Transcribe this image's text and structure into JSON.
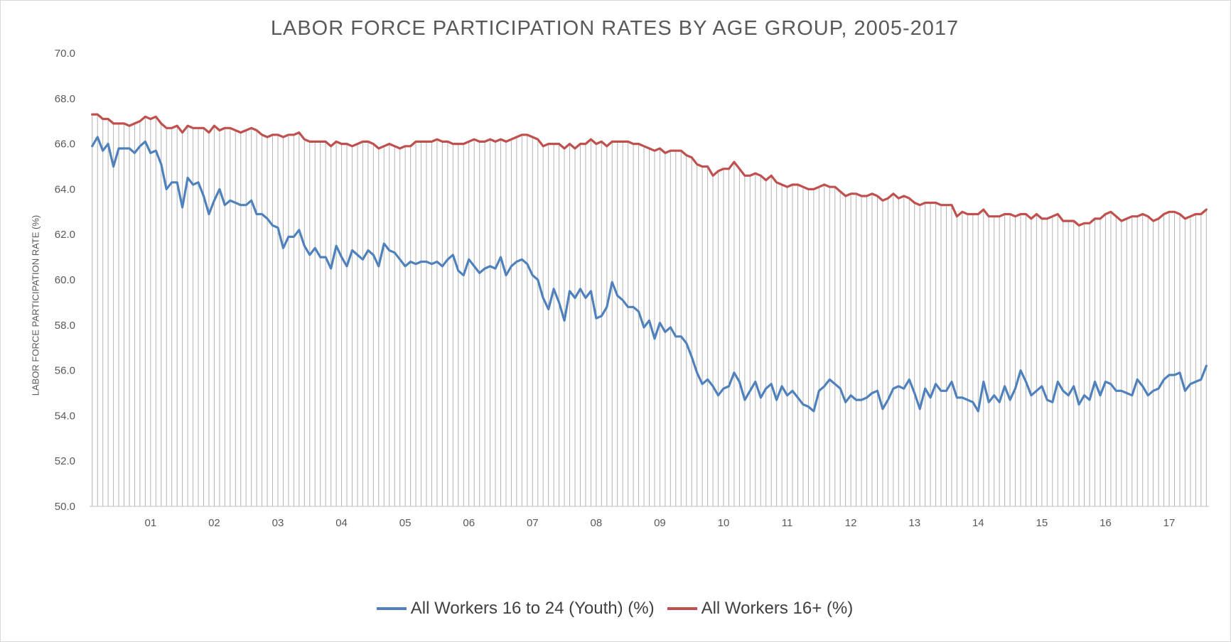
{
  "chart_data": {
    "type": "line",
    "title": "LABOR FORCE PARTICIPATION RATES BY AGE GROUP, 2005-2017",
    "xlabel": "",
    "ylabel": "LABOR FORCE PARTICIPATION RATE (%)",
    "ylim": [
      50,
      70
    ],
    "yticks": [
      "70.0",
      "68.0",
      "66.0",
      "64.0",
      "62.0",
      "60.0",
      "58.0",
      "56.0",
      "54.0",
      "52.0",
      "50.0"
    ],
    "x_tick_labels": [
      "01",
      "02",
      "03",
      "04",
      "05",
      "06",
      "07",
      "08",
      "09",
      "10",
      "11",
      "12",
      "13",
      "14",
      "15",
      "16",
      "17"
    ],
    "x_tick_months": [
      12,
      24,
      36,
      48,
      60,
      72,
      84,
      96,
      108,
      120,
      132,
      144,
      156,
      168,
      180,
      192,
      204
    ],
    "grid": "vertical drop lines to axis",
    "legend_position": "bottom",
    "series": [
      {
        "name": "All Workers 16 to 24 (Youth) (%)",
        "color": "#4f81bd",
        "values": [
          65.9,
          66.3,
          65.7,
          66.0,
          65.0,
          65.8,
          65.8,
          65.8,
          65.6,
          65.9,
          66.1,
          65.6,
          65.7,
          65.1,
          64.0,
          64.3,
          64.3,
          63.2,
          64.5,
          64.2,
          64.3,
          63.7,
          62.9,
          63.5,
          64.0,
          63.3,
          63.5,
          63.4,
          63.3,
          63.3,
          63.5,
          62.9,
          62.9,
          62.7,
          62.4,
          62.3,
          61.4,
          61.9,
          61.9,
          62.2,
          61.5,
          61.1,
          61.4,
          61.0,
          61.0,
          60.5,
          61.5,
          61.0,
          60.6,
          61.3,
          61.1,
          60.9,
          61.3,
          61.1,
          60.6,
          61.6,
          61.3,
          61.2,
          60.9,
          60.6,
          60.8,
          60.7,
          60.8,
          60.8,
          60.7,
          60.8,
          60.6,
          60.9,
          61.1,
          60.4,
          60.2,
          60.9,
          60.6,
          60.3,
          60.5,
          60.6,
          60.5,
          61.0,
          60.2,
          60.6,
          60.8,
          60.9,
          60.7,
          60.2,
          60.0,
          59.2,
          58.7,
          59.6,
          59.0,
          58.2,
          59.5,
          59.2,
          59.6,
          59.2,
          59.5,
          58.3,
          58.4,
          58.8,
          59.9,
          59.3,
          59.1,
          58.8,
          58.8,
          58.6,
          57.9,
          58.2,
          57.4,
          58.1,
          57.7,
          57.9,
          57.5,
          57.5,
          57.2,
          56.6,
          55.9,
          55.4,
          55.6,
          55.3,
          54.9,
          55.2,
          55.3,
          55.9,
          55.5,
          54.7,
          55.1,
          55.5,
          54.8,
          55.2,
          55.4,
          54.7,
          55.3,
          54.9,
          55.1,
          54.8,
          54.5,
          54.4,
          54.2,
          55.1,
          55.3,
          55.6,
          55.4,
          55.2,
          54.6,
          54.9,
          54.7,
          54.7,
          54.8,
          55.0,
          55.1,
          54.3,
          54.7,
          55.2,
          55.3,
          55.2,
          55.6,
          55.0,
          54.3,
          55.2,
          54.8,
          55.4,
          55.1,
          55.1,
          55.5,
          54.8,
          54.8,
          54.7,
          54.6,
          54.2,
          55.5,
          54.6,
          54.9,
          54.6,
          55.3,
          54.7,
          55.2,
          56.0,
          55.5,
          54.9,
          55.1,
          55.3,
          54.7,
          54.6,
          55.5,
          55.1,
          54.9,
          55.3,
          54.5,
          54.9,
          54.7,
          55.5,
          54.9,
          55.5,
          55.4,
          55.1,
          55.1,
          55.0,
          54.9,
          55.6,
          55.3,
          54.9,
          55.1,
          55.2,
          55.6,
          55.8,
          55.8,
          55.9,
          55.1,
          55.4,
          55.5,
          55.6,
          56.2
        ]
      },
      {
        "name": "All Workers 16+ (%)",
        "color": "#c0504d",
        "values": [
          67.3,
          67.3,
          67.1,
          67.1,
          66.9,
          66.9,
          66.9,
          66.8,
          66.9,
          67.0,
          67.2,
          67.1,
          67.2,
          66.9,
          66.7,
          66.7,
          66.8,
          66.5,
          66.8,
          66.7,
          66.7,
          66.7,
          66.5,
          66.8,
          66.6,
          66.7,
          66.7,
          66.6,
          66.5,
          66.6,
          66.7,
          66.6,
          66.4,
          66.3,
          66.4,
          66.4,
          66.3,
          66.4,
          66.4,
          66.5,
          66.2,
          66.1,
          66.1,
          66.1,
          66.1,
          65.9,
          66.1,
          66.0,
          66.0,
          65.9,
          66.0,
          66.1,
          66.1,
          66.0,
          65.8,
          65.9,
          66.0,
          65.9,
          65.8,
          65.9,
          65.9,
          66.1,
          66.1,
          66.1,
          66.1,
          66.2,
          66.1,
          66.1,
          66.0,
          66.0,
          66.0,
          66.1,
          66.2,
          66.1,
          66.1,
          66.2,
          66.1,
          66.2,
          66.1,
          66.2,
          66.3,
          66.4,
          66.4,
          66.3,
          66.2,
          65.9,
          66.0,
          66.0,
          66.0,
          65.8,
          66.0,
          65.8,
          66.0,
          66.0,
          66.2,
          66.0,
          66.1,
          65.9,
          66.1,
          66.1,
          66.1,
          66.1,
          66.0,
          66.0,
          65.9,
          65.8,
          65.7,
          65.8,
          65.6,
          65.7,
          65.7,
          65.7,
          65.5,
          65.4,
          65.1,
          65.0,
          65.0,
          64.6,
          64.8,
          64.9,
          64.9,
          65.2,
          64.9,
          64.6,
          64.6,
          64.7,
          64.6,
          64.4,
          64.6,
          64.3,
          64.2,
          64.1,
          64.2,
          64.2,
          64.1,
          64.0,
          64.0,
          64.1,
          64.2,
          64.1,
          64.1,
          63.9,
          63.7,
          63.8,
          63.8,
          63.7,
          63.7,
          63.8,
          63.7,
          63.5,
          63.6,
          63.8,
          63.6,
          63.7,
          63.6,
          63.4,
          63.3,
          63.4,
          63.4,
          63.4,
          63.3,
          63.3,
          63.3,
          62.8,
          63.0,
          62.9,
          62.9,
          62.9,
          63.1,
          62.8,
          62.8,
          62.8,
          62.9,
          62.9,
          62.8,
          62.9,
          62.9,
          62.7,
          62.9,
          62.7,
          62.7,
          62.8,
          62.9,
          62.6,
          62.6,
          62.6,
          62.4,
          62.5,
          62.5,
          62.7,
          62.7,
          62.9,
          63.0,
          62.8,
          62.6,
          62.7,
          62.8,
          62.8,
          62.9,
          62.8,
          62.6,
          62.7,
          62.9,
          63.0,
          63.0,
          62.9,
          62.7,
          62.8,
          62.9,
          62.9,
          63.1
        ]
      }
    ]
  }
}
